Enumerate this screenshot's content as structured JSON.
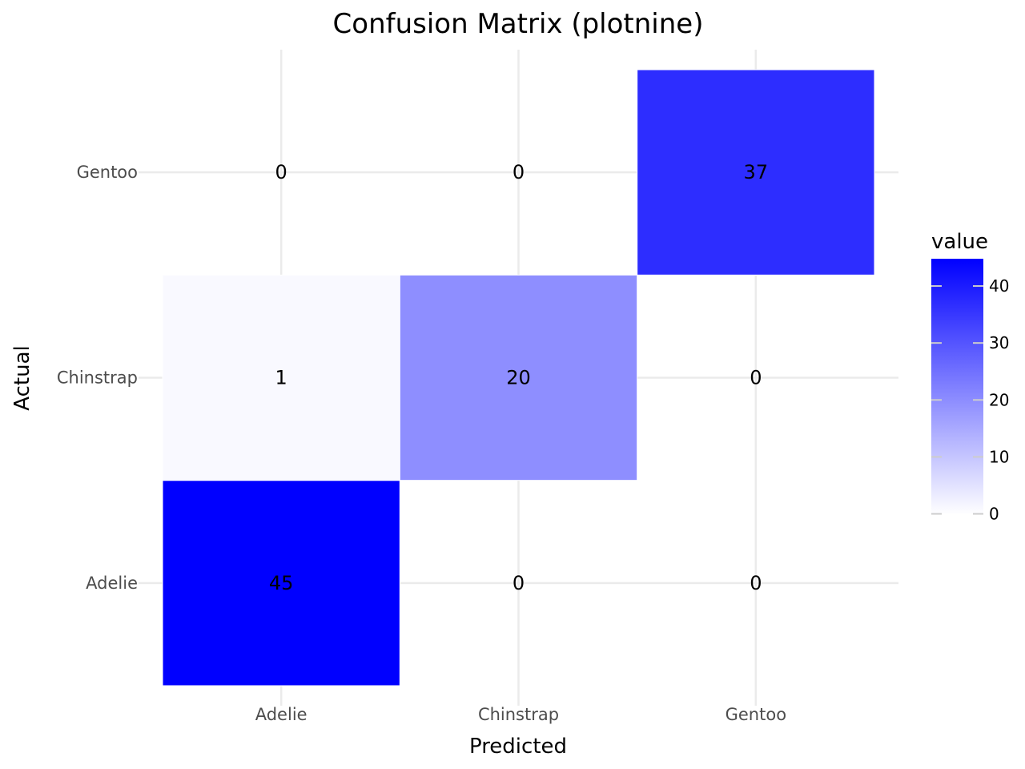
{
  "chart_data": {
    "type": "heatmap",
    "title": "Confusion Matrix (plotnine)",
    "xlabel": "Predicted",
    "ylabel": "Actual",
    "x_categories": [
      "Adelie",
      "Chinstrap",
      "Gentoo"
    ],
    "y_categories": [
      "Adelie",
      "Chinstrap",
      "Gentoo"
    ],
    "cells": [
      {
        "actual": "Adelie",
        "predicted": "Adelie",
        "value": 45
      },
      {
        "actual": "Adelie",
        "predicted": "Chinstrap",
        "value": 0
      },
      {
        "actual": "Adelie",
        "predicted": "Gentoo",
        "value": 0
      },
      {
        "actual": "Chinstrap",
        "predicted": "Adelie",
        "value": 1
      },
      {
        "actual": "Chinstrap",
        "predicted": "Chinstrap",
        "value": 20
      },
      {
        "actual": "Chinstrap",
        "predicted": "Gentoo",
        "value": 0
      },
      {
        "actual": "Gentoo",
        "predicted": "Adelie",
        "value": 0
      },
      {
        "actual": "Gentoo",
        "predicted": "Chinstrap",
        "value": 0
      },
      {
        "actual": "Gentoo",
        "predicted": "Gentoo",
        "value": 37
      }
    ],
    "color_scale": {
      "low": "#ffffff",
      "high": "#0000ff",
      "range": [
        0,
        45
      ],
      "title": "value",
      "ticks": [
        0,
        10,
        20,
        30,
        40
      ]
    },
    "grid": true,
    "legend_position": "right"
  }
}
